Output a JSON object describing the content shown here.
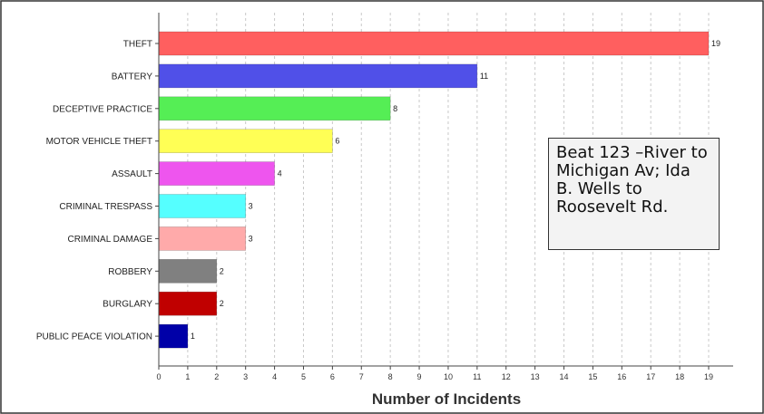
{
  "chart_data": {
    "type": "bar",
    "orientation": "horizontal",
    "categories": [
      "THEFT",
      "BATTERY",
      "DECEPTIVE PRACTICE",
      "MOTOR VEHICLE THEFT",
      "ASSAULT",
      "CRIMINAL TRESPASS",
      "CRIMINAL DAMAGE",
      "ROBBERY",
      "BURGLARY",
      "PUBLIC PEACE VIOLATION"
    ],
    "values": [
      19,
      11,
      8,
      6,
      4,
      3,
      3,
      2,
      2,
      1
    ],
    "colors": [
      "#ff5f5f",
      "#5050e8",
      "#55ee55",
      "#ffff55",
      "#ee55ee",
      "#55ffff",
      "#ffaaaa",
      "#808080",
      "#c00000",
      "#0000a8"
    ],
    "title": "",
    "xlabel": "Number of Incidents",
    "ylabel": "",
    "xlim": [
      0,
      19
    ],
    "xticks": [
      0,
      1,
      2,
      3,
      4,
      5,
      6,
      7,
      8,
      9,
      10,
      11,
      12,
      13,
      14,
      15,
      16,
      17,
      18,
      19
    ],
    "grid": "vertical dashed",
    "legend": "none",
    "annotation": "Beat 123 –River to Michigan Av; Ida B. Wells to Roosevelt Rd."
  }
}
